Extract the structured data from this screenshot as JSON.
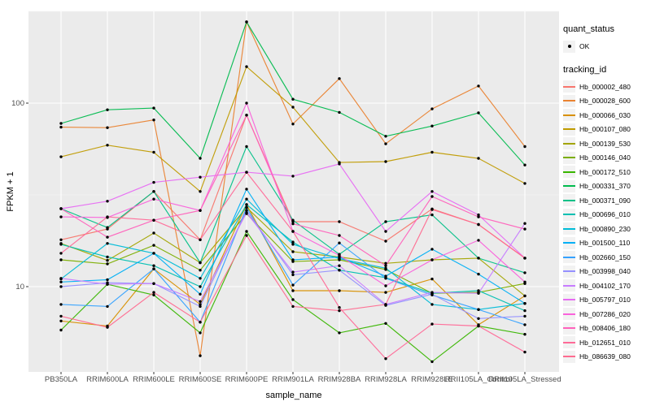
{
  "figure": {
    "xlabel": "sample_name",
    "ylabel": "FPKM + 1",
    "panel_background": "#EBEBEB",
    "grid_major_color": "#FFFFFF",
    "grid_minor_color": "#F5F5F5",
    "tick_color": "#333333",
    "tick_label_color": "#4D4D4D",
    "point_color": "#000000",
    "legend_key_background": "#F2F2F2"
  },
  "legend": {
    "quant_status": {
      "title": "quant_status",
      "ok_label": "OK",
      "ok_symbol": "point-icon"
    },
    "tracking_id": {
      "title": "tracking_id"
    }
  },
  "chart_data": {
    "type": "line",
    "log_y": true,
    "grid": true,
    "legend_position": "right",
    "xlabel": "sample_name",
    "ylabel": "FPKM + 1",
    "y_ticks": [
      10,
      100
    ],
    "y_tick_labels": [
      "10",
      "100"
    ],
    "y_minor_ticks": [
      31.62,
      316.23
    ],
    "ylim": [
      3.4,
      330
    ],
    "categories": [
      "PB350LA",
      "RRIM600LA",
      "RRIM600LE",
      "RRIM600SE",
      "RRIM600PE",
      "RRIM901LA",
      "RRIM928BA",
      "RRIM928LA",
      "RRIM928LE",
      "RRII105LA_Control",
      "RRII105LA_Stressed"
    ],
    "quant_status_all_points": "OK",
    "series": [
      {
        "name": "Hb_000002_480",
        "color": "#F8766D",
        "values": [
          18,
          20.6,
          33,
          18,
          86,
          22.6,
          22.6,
          17.7,
          26.5,
          21.8,
          14.3
        ]
      },
      {
        "name": "Hb_000028_600",
        "color": "#EA8331",
        "values": [
          74,
          73.5,
          81,
          4.2,
          277,
          77,
          136,
          60,
          93,
          124,
          58
        ]
      },
      {
        "name": "Hb_000066_030",
        "color": "#D89000",
        "values": [
          6.5,
          6.1,
          12.5,
          8,
          28,
          9.5,
          9.5,
          9.3,
          11,
          6.2,
          8.9
        ]
      },
      {
        "name": "Hb_000107_080",
        "color": "#C09B00",
        "values": [
          51,
          59,
          54,
          33,
          158,
          95,
          47.5,
          48,
          54,
          50,
          36.5
        ]
      },
      {
        "name": "Hb_000139_530",
        "color": "#A3A500",
        "values": [
          17.2,
          13.9,
          19.6,
          13.5,
          27,
          15.5,
          14.5,
          13.4,
          14,
          14.3,
          8.9
        ]
      },
      {
        "name": "Hb_000146_040",
        "color": "#7CAE00",
        "values": [
          14,
          13.3,
          16.8,
          12.3,
          25,
          13.7,
          14,
          12.4,
          9.2,
          9.3,
          10.4
        ]
      },
      {
        "name": "Hb_000172_510",
        "color": "#39B600",
        "values": [
          5.8,
          10.3,
          9,
          5.6,
          20,
          8.5,
          5.6,
          6.3,
          3.9,
          6.1,
          5.5
        ]
      },
      {
        "name": "Hb_000331_370",
        "color": "#00BB4E",
        "values": [
          77.5,
          92,
          94,
          50,
          277,
          105,
          89,
          66,
          75,
          88.5,
          46
        ]
      },
      {
        "name": "Hb_000371_090",
        "color": "#00C087",
        "values": [
          26.6,
          21,
          33,
          13.5,
          58,
          23,
          15,
          22.6,
          24.6,
          14.3,
          11.9
        ]
      },
      {
        "name": "Hb_000696_010",
        "color": "#00C0B2",
        "values": [
          17,
          14.5,
          13,
          10,
          28,
          17.5,
          12.3,
          11.2,
          9.2,
          9.5,
          7.4
        ]
      },
      {
        "name": "Hb_000890_230",
        "color": "#00BCD8",
        "values": [
          11,
          17.2,
          15.2,
          11.1,
          30,
          17,
          14.2,
          12.6,
          8,
          7.5,
          8.1
        ]
      },
      {
        "name": "Hb_001500_110",
        "color": "#00B0F6",
        "values": [
          10.6,
          10.9,
          15.2,
          9.1,
          34,
          14,
          14.5,
          11.4,
          16,
          11.7,
          8.1
        ]
      },
      {
        "name": "Hb_002660_150",
        "color": "#35A2FF",
        "values": [
          8,
          7.8,
          12.5,
          6.4,
          27,
          10.2,
          17.3,
          11.1,
          9,
          7.5,
          6.2
        ]
      },
      {
        "name": "Hb_003998_040",
        "color": "#9590FF",
        "values": [
          10,
          10.5,
          10.4,
          7.8,
          26,
          11.6,
          12.3,
          7.9,
          9.1,
          6.7,
          6.9
        ]
      },
      {
        "name": "Hb_004102_170",
        "color": "#C77CFF",
        "values": [
          11.1,
          10.3,
          10.4,
          8.3,
          25.3,
          12,
          13,
          8,
          9.3,
          9.2,
          22.1
        ]
      },
      {
        "name": "Hb_005797_010",
        "color": "#E76BF3",
        "values": [
          26.6,
          29.2,
          37,
          39.5,
          42,
          40,
          46.6,
          20,
          33,
          24.6,
          14.3
        ]
      },
      {
        "name": "Hb_007286_020",
        "color": "#FA62DB",
        "values": [
          24,
          23.8,
          30,
          26,
          100,
          20,
          14.8,
          10.1,
          14,
          17.9,
          10.6
        ]
      },
      {
        "name": "Hb_008406_180",
        "color": "#FF62BC",
        "values": [
          26.6,
          18.6,
          23,
          26,
          86,
          22,
          19,
          13,
          31,
          24,
          20.6
        ]
      },
      {
        "name": "Hb_012651_010",
        "color": "#FF6A98",
        "values": [
          15.2,
          24,
          23,
          18,
          42,
          20,
          7.7,
          4.05,
          6.25,
          6.1,
          4.4
        ]
      },
      {
        "name": "Hb_086639_080",
        "color": "#FF6C90",
        "values": [
          6.9,
          6,
          9.3,
          6.4,
          19,
          7.8,
          7.4,
          8,
          26.3,
          21.8,
          14.3
        ]
      }
    ]
  }
}
